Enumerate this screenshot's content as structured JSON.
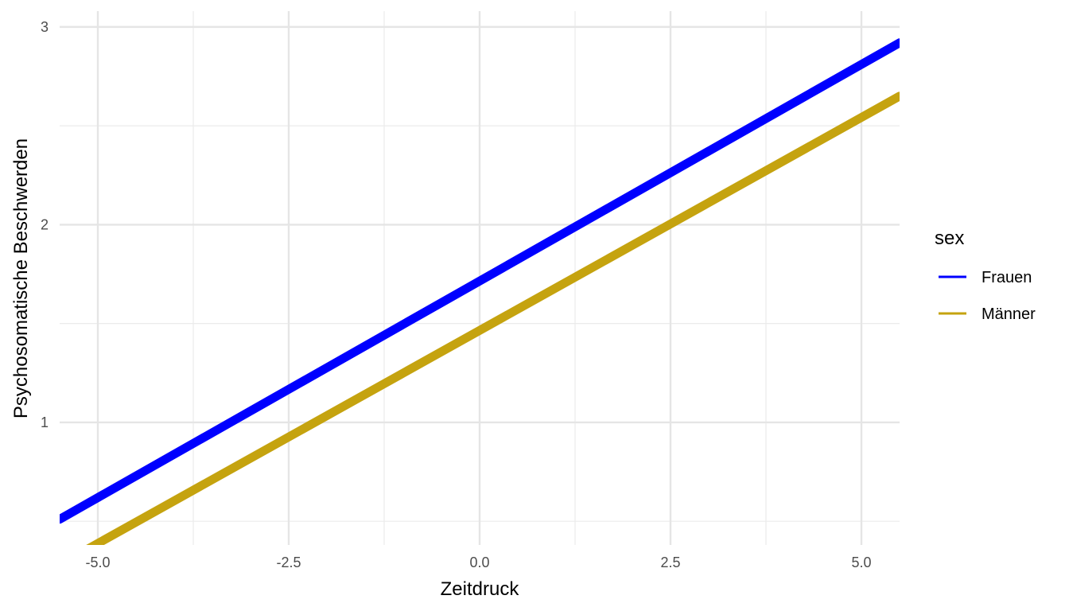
{
  "chart_data": {
    "type": "line",
    "xlabel": "Zeitdruck",
    "ylabel": "Psychosomatische Beschwerden",
    "xlim": [
      -5.5,
      5.5
    ],
    "ylim": [
      0.38,
      3.08
    ],
    "x_ticks": [
      -5.0,
      -2.5,
      0.0,
      2.5,
      5.0
    ],
    "x_tick_labels": [
      "-5.0",
      "-2.5",
      "0.0",
      "2.5",
      "5.0"
    ],
    "y_ticks": [
      1,
      2,
      3
    ],
    "y_tick_labels": [
      "1",
      "2",
      "3"
    ],
    "grid": true,
    "legend": {
      "title": "sex",
      "placement": "right"
    },
    "series": [
      {
        "name": "Frauen",
        "color": "#0000FF",
        "x": [
          -5.5,
          5.5
        ],
        "y": [
          0.51,
          2.92
        ]
      },
      {
        "name": "Männer",
        "color": "#C5A30F",
        "x": [
          -5.5,
          5.5
        ],
        "y": [
          0.28,
          2.65
        ]
      }
    ]
  }
}
